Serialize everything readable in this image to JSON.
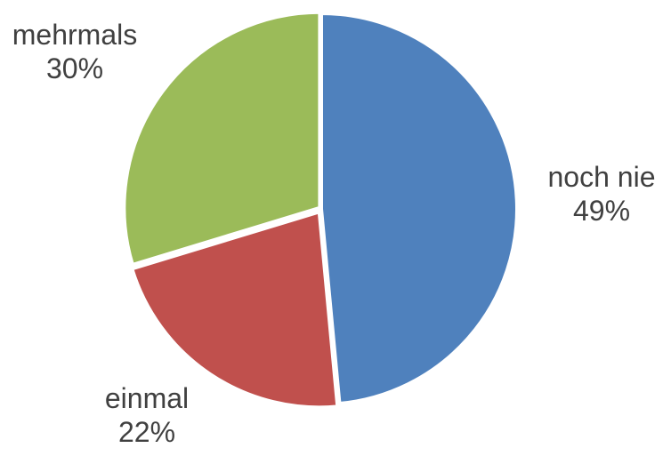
{
  "chart_data": {
    "type": "pie",
    "title": "",
    "slices": [
      {
        "label": "noch nie",
        "value": 49,
        "value_label": "49%",
        "color": "#4f81bd"
      },
      {
        "label": "einmal",
        "value": 22,
        "value_label": "22%",
        "color": "#c0504d"
      },
      {
        "label": "mehrmals",
        "value": 30,
        "value_label": "30%",
        "color": "#9bbb59"
      }
    ],
    "start_angle": "12 o'clock",
    "direction": "clockwise",
    "slice_border_color": "#ffffff",
    "label_color": "#404040",
    "legend": "none"
  }
}
